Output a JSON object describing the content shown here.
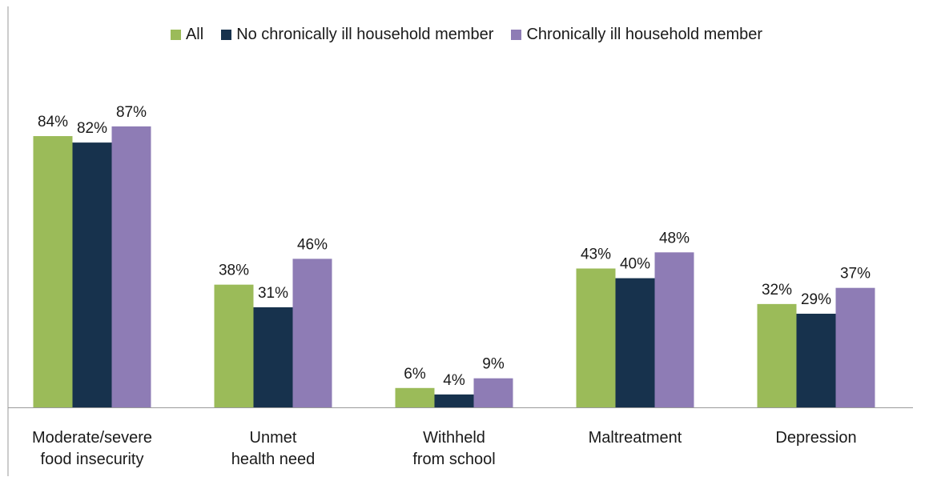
{
  "chart_data": {
    "type": "bar",
    "categories": [
      [
        "Moderate/severe",
        "food insecurity"
      ],
      [
        "Unmet",
        "health need"
      ],
      [
        "Withheld",
        "from school"
      ],
      [
        "Maltreatment"
      ],
      [
        "Depression"
      ]
    ],
    "series": [
      {
        "name": "All",
        "color": "#9bbb59",
        "values": [
          84,
          38,
          6,
          43,
          32
        ],
        "labels": [
          "84%",
          "38%",
          "6%",
          "43%",
          "32%"
        ]
      },
      {
        "name": "No chronically ill household member",
        "color": "#17324d",
        "values": [
          82,
          31,
          4,
          40,
          29
        ],
        "labels": [
          "82%",
          "31%",
          "4%",
          "40%",
          "29%"
        ]
      },
      {
        "name": "Chronically ill household member",
        "color": "#8e7cb5",
        "values": [
          87,
          46,
          9,
          48,
          37
        ],
        "labels": [
          "87%",
          "46%",
          "9%",
          "48%",
          "37%"
        ]
      }
    ],
    "ylim": [
      0,
      100
    ],
    "legend_position": "top-center",
    "grid": false
  }
}
